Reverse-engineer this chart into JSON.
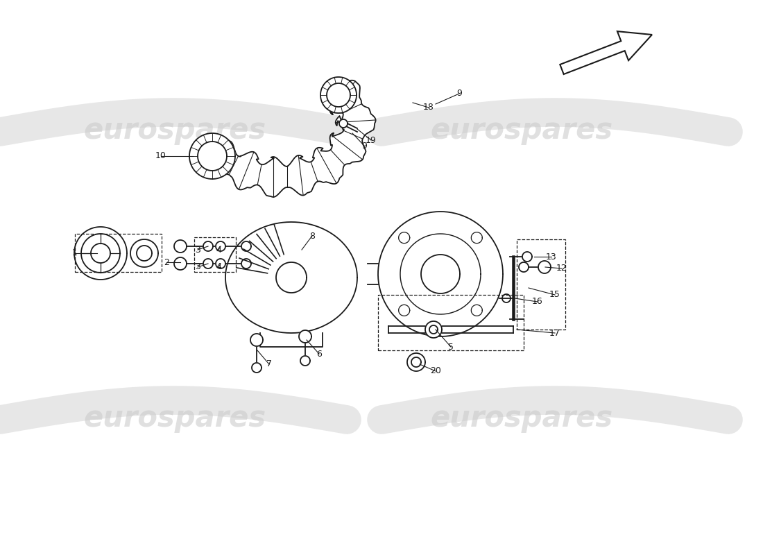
{
  "bg_color": "#ffffff",
  "lc": "#1a1a1a",
  "lw": 1.3,
  "fs": 9,
  "watermark": {
    "text": "eurospares",
    "color": "#c8c8c8",
    "alpha": 0.55,
    "fontsize": 30
  },
  "wave_color": "#dddddd",
  "wave_alpha": 0.7,
  "wave_lw": 30
}
